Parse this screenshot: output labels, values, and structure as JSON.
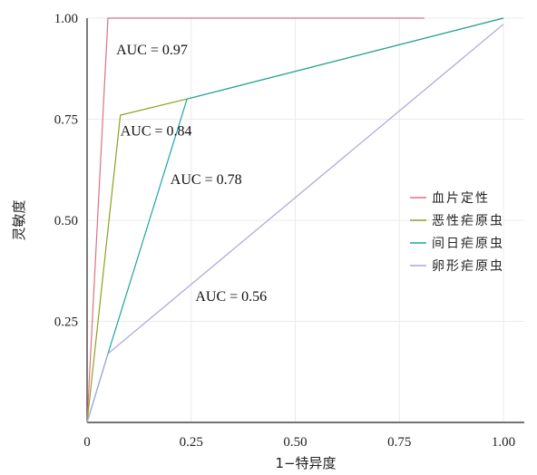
{
  "chart_data": {
    "type": "line",
    "xlabel": "1−特异度",
    "ylabel": "灵敏度",
    "xlim": [
      0,
      1.05
    ],
    "ylim": [
      0,
      1.0
    ],
    "xticks": [
      {
        "value": 0,
        "label": "0"
      },
      {
        "value": 0.25,
        "label": "0.25"
      },
      {
        "value": 0.5,
        "label": "0.50"
      },
      {
        "value": 0.75,
        "label": "0.75"
      },
      {
        "value": 1.0,
        "label": "1.00"
      }
    ],
    "yticks": [
      {
        "value": 0.25,
        "label": "0.25"
      },
      {
        "value": 0.5,
        "label": "0.50"
      },
      {
        "value": 0.75,
        "label": "0.75"
      },
      {
        "value": 1.0,
        "label": "1.00"
      }
    ],
    "grid": true,
    "legend_position": "right",
    "series": [
      {
        "name": "血片定性",
        "color": "#e07080",
        "x": [
          0,
          0.05,
          0.81
        ],
        "y": [
          0,
          1.0,
          1.0
        ]
      },
      {
        "name": "恶性疟原虫",
        "color": "#8fa020",
        "x": [
          0,
          0.08,
          0.24,
          1.0
        ],
        "y": [
          0,
          0.76,
          0.8,
          1.0
        ]
      },
      {
        "name": "间日疟原虫",
        "color": "#1fa5a5",
        "x": [
          0,
          0.05,
          0.24,
          1.0
        ],
        "y": [
          0,
          0.17,
          0.8,
          1.0
        ]
      },
      {
        "name": "卵形疟原虫",
        "color": "#a8a6dc",
        "x": [
          0,
          0.05,
          1.0
        ],
        "y": [
          0,
          0.17,
          0.985
        ]
      }
    ],
    "annotations": [
      {
        "text": "AUC = 0.97",
        "x": 0.07,
        "y": 0.91
      },
      {
        "text": "AUC = 0.84",
        "x": 0.08,
        "y": 0.71
      },
      {
        "text": "AUC = 0.78",
        "x": 0.2,
        "y": 0.59
      },
      {
        "text": "AUC = 0.56",
        "x": 0.26,
        "y": 0.3
      }
    ]
  }
}
